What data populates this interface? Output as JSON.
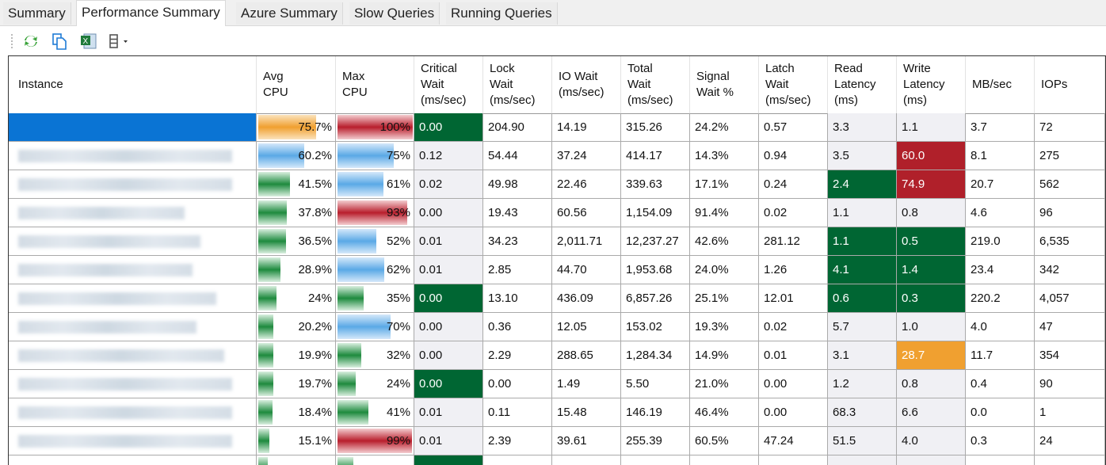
{
  "tabs": [
    {
      "label": "Summary"
    },
    {
      "label": "Performance Summary",
      "active": true
    },
    {
      "label": "Azure Summary"
    },
    {
      "label": "Slow Queries"
    },
    {
      "label": "Running Queries"
    }
  ],
  "toolbar": {
    "icons": [
      "refresh-icon",
      "copy-icon",
      "excel-export-icon",
      "columns-icon"
    ]
  },
  "colors": {
    "selected": "#0a74d4",
    "good": "#006633",
    "bad": "#b0202a",
    "warn": "#f0a030",
    "bar_blue": "#5aa9e6",
    "bar_green": "#1e8a3e",
    "bar_red": "#b81e2c",
    "bar_orange": "#f0a030"
  },
  "columns": [
    "Instance",
    "Avg\nCPU",
    "Max\nCPU",
    "Critical\nWait\n(ms/sec)",
    "Lock\nWait\n(ms/sec)",
    "IO Wait\n(ms/sec)",
    "Total\nWait\n(ms/sec)",
    "Signal\nWait %",
    "Latch\nWait\n(ms/sec)",
    "Read\nLatency\n(ms)",
    "Write\nLatency\n(ms)",
    "MB/sec",
    "IOPs"
  ],
  "rows": [
    {
      "avg": "75.7%",
      "avg_v": 75.7,
      "avg_c": "orange",
      "max": "100%",
      "max_v": 100,
      "max_c": "red",
      "crit": "0.00",
      "crit_s": "green",
      "lock": "204.90",
      "io": "14.19",
      "total": "315.26",
      "signal": "24.2%",
      "latch": "0.57",
      "read": "3.3",
      "read_s": "",
      "write": "1.1",
      "write_s": "",
      "mb": "3.7",
      "iops": "72",
      "selected": true
    },
    {
      "avg": "60.2%",
      "avg_v": 60.2,
      "avg_c": "blue",
      "max": "75%",
      "max_v": 75,
      "max_c": "blue",
      "crit": "0.12",
      "crit_s": "",
      "lock": "54.44",
      "io": "37.24",
      "total": "414.17",
      "signal": "14.3%",
      "latch": "0.94",
      "read": "3.5",
      "read_s": "",
      "write": "60.0",
      "write_s": "red",
      "mb": "8.1",
      "iops": "275"
    },
    {
      "avg": "41.5%",
      "avg_v": 41.5,
      "avg_c": "green",
      "max": "61%",
      "max_v": 61,
      "max_c": "blue",
      "crit": "0.02",
      "crit_s": "",
      "lock": "49.98",
      "io": "22.46",
      "total": "339.63",
      "signal": "17.1%",
      "latch": "0.24",
      "read": "2.4",
      "read_s": "green",
      "write": "74.9",
      "write_s": "red",
      "mb": "20.7",
      "iops": "562"
    },
    {
      "avg": "37.8%",
      "avg_v": 37.8,
      "avg_c": "green",
      "max": "93%",
      "max_v": 93,
      "max_c": "red",
      "crit": "0.00",
      "crit_s": "",
      "lock": "19.43",
      "io": "60.56",
      "total": "1,154.09",
      "signal": "91.4%",
      "latch": "0.02",
      "read": "1.1",
      "read_s": "",
      "write": "0.8",
      "write_s": "",
      "mb": "4.6",
      "iops": "96"
    },
    {
      "avg": "36.5%",
      "avg_v": 36.5,
      "avg_c": "green",
      "max": "52%",
      "max_v": 52,
      "max_c": "blue",
      "crit": "0.01",
      "crit_s": "",
      "lock": "34.23",
      "io": "2,011.71",
      "total": "12,237.27",
      "signal": "42.6%",
      "latch": "281.12",
      "read": "1.1",
      "read_s": "green",
      "write": "0.5",
      "write_s": "green",
      "mb": "219.0",
      "iops": "6,535"
    },
    {
      "avg": "28.9%",
      "avg_v": 28.9,
      "avg_c": "green",
      "max": "62%",
      "max_v": 62,
      "max_c": "blue",
      "crit": "0.01",
      "crit_s": "",
      "lock": "2.85",
      "io": "44.70",
      "total": "1,953.68",
      "signal": "24.0%",
      "latch": "1.26",
      "read": "4.1",
      "read_s": "green",
      "write": "1.4",
      "write_s": "green",
      "mb": "23.4",
      "iops": "342"
    },
    {
      "avg": "24%",
      "avg_v": 24,
      "avg_c": "green",
      "max": "35%",
      "max_v": 35,
      "max_c": "green",
      "crit": "0.00",
      "crit_s": "green",
      "lock": "13.10",
      "io": "436.09",
      "total": "6,857.26",
      "signal": "25.1%",
      "latch": "12.01",
      "read": "0.6",
      "read_s": "green",
      "write": "0.3",
      "write_s": "green",
      "mb": "220.2",
      "iops": "4,057"
    },
    {
      "avg": "20.2%",
      "avg_v": 20.2,
      "avg_c": "green",
      "max": "70%",
      "max_v": 70,
      "max_c": "blue",
      "crit": "0.00",
      "crit_s": "",
      "lock": "0.36",
      "io": "12.05",
      "total": "153.02",
      "signal": "19.3%",
      "latch": "0.02",
      "read": "5.7",
      "read_s": "",
      "write": "1.0",
      "write_s": "",
      "mb": "4.0",
      "iops": "47"
    },
    {
      "avg": "19.9%",
      "avg_v": 19.9,
      "avg_c": "green",
      "max": "32%",
      "max_v": 32,
      "max_c": "green",
      "crit": "0.00",
      "crit_s": "",
      "lock": "2.29",
      "io": "288.65",
      "total": "1,284.34",
      "signal": "14.9%",
      "latch": "0.01",
      "read": "3.1",
      "read_s": "",
      "write": "28.7",
      "write_s": "orange",
      "mb": "11.7",
      "iops": "354"
    },
    {
      "avg": "19.7%",
      "avg_v": 19.7,
      "avg_c": "green",
      "max": "24%",
      "max_v": 24,
      "max_c": "green",
      "crit": "0.00",
      "crit_s": "green",
      "lock": "0.00",
      "io": "1.49",
      "total": "5.50",
      "signal": "21.0%",
      "latch": "0.00",
      "read": "1.2",
      "read_s": "",
      "write": "0.8",
      "write_s": "",
      "mb": "0.4",
      "iops": "90"
    },
    {
      "avg": "18.4%",
      "avg_v": 18.4,
      "avg_c": "green",
      "max": "41%",
      "max_v": 41,
      "max_c": "green",
      "crit": "0.01",
      "crit_s": "",
      "lock": "0.11",
      "io": "15.48",
      "total": "146.19",
      "signal": "46.4%",
      "latch": "0.00",
      "read": "68.3",
      "read_s": "",
      "write": "6.6",
      "write_s": "",
      "mb": "0.0",
      "iops": "1"
    },
    {
      "avg": "15.1%",
      "avg_v": 15.1,
      "avg_c": "green",
      "max": "99%",
      "max_v": 99,
      "max_c": "red",
      "crit": "0.01",
      "crit_s": "",
      "lock": "2.39",
      "io": "39.61",
      "total": "255.39",
      "signal": "60.5%",
      "latch": "47.24",
      "read": "51.5",
      "read_s": "",
      "write": "4.0",
      "write_s": "",
      "mb": "0.3",
      "iops": "24"
    }
  ]
}
